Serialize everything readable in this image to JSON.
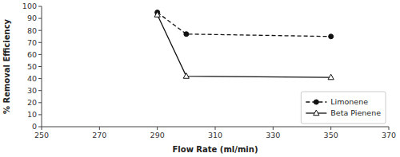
{
  "chart_data": {
    "type": "line",
    "x_label": "Flow Rate (ml/min)",
    "y_label": "% Removal Efficiency",
    "x": [
      290,
      300,
      350
    ],
    "series": [
      {
        "name": "Limonene",
        "color": "#111111",
        "values": [
          95,
          77,
          75
        ],
        "line_style": "dashed",
        "marker": "circle"
      },
      {
        "name": "Beta Pienene",
        "color": "#111111",
        "values": [
          93,
          42,
          41
        ],
        "line_style": "solid",
        "marker": "triangle-open"
      }
    ],
    "xlim": [
      250,
      370
    ],
    "ylim": [
      0,
      100
    ],
    "xticks": [
      250,
      270,
      290,
      310,
      330,
      350,
      370
    ],
    "yticks": [
      0,
      10,
      20,
      30,
      40,
      50,
      60,
      70,
      80,
      90,
      100
    ],
    "legend": "lower right",
    "grid": false
  }
}
